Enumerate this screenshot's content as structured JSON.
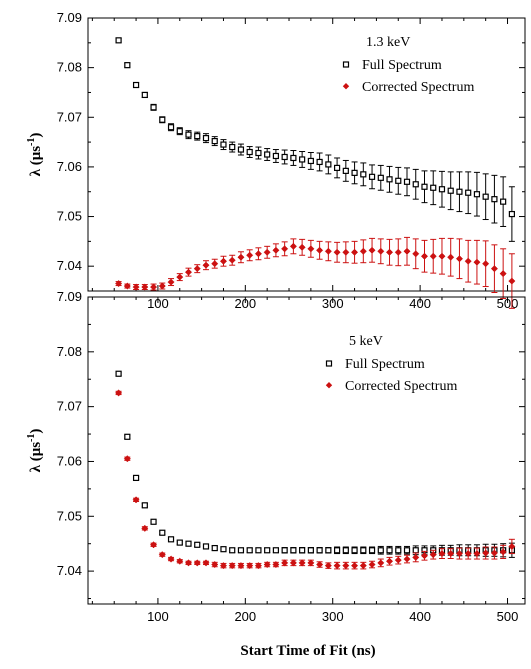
{
  "xlabel": "Start Time of Fit (ns)",
  "ylabel_main": "λ (μs",
  "ylabel_sup": "-1",
  "ylabel_close": ")",
  "colors": {
    "full": "#000000",
    "corrected": "#cc1111"
  },
  "chart_data": [
    {
      "type": "scatter",
      "energy_label": "1.3 keV",
      "legend": [
        "Full Spectrum",
        "Corrected Spectrum"
      ],
      "xlim": [
        20,
        520
      ],
      "ylim": [
        7.035,
        7.09
      ],
      "xticks": [
        100,
        200,
        300,
        400,
        500
      ],
      "yticks": [
        7.04,
        7.05,
        7.06,
        7.07,
        7.08,
        7.09
      ],
      "x": [
        55,
        65,
        75,
        85,
        95,
        105,
        115,
        125,
        135,
        145,
        155,
        165,
        175,
        185,
        195,
        205,
        215,
        225,
        235,
        245,
        255,
        265,
        275,
        285,
        295,
        305,
        315,
        325,
        335,
        345,
        355,
        365,
        375,
        385,
        395,
        405,
        415,
        425,
        435,
        445,
        455,
        465,
        475,
        485,
        495,
        505
      ],
      "series": [
        {
          "name": "Full Spectrum",
          "values": [
            7.0855,
            7.0805,
            7.0765,
            7.0745,
            7.072,
            7.0695,
            7.068,
            7.0672,
            7.0665,
            7.0662,
            7.0658,
            7.0652,
            7.0645,
            7.064,
            7.0635,
            7.063,
            7.0628,
            7.0625,
            7.0622,
            7.062,
            7.0618,
            7.0615,
            7.0612,
            7.061,
            7.0605,
            7.0598,
            7.0592,
            7.0588,
            7.0585,
            7.058,
            7.0578,
            7.0575,
            7.0572,
            7.057,
            7.0565,
            7.056,
            7.0558,
            7.0555,
            7.0552,
            7.055,
            7.0548,
            7.0545,
            7.054,
            7.0535,
            7.053,
            7.0505
          ],
          "errors": [
            0.0004,
            0.0004,
            0.0005,
            0.0005,
            0.0006,
            0.0006,
            0.0007,
            0.0007,
            0.0008,
            0.0008,
            0.0009,
            0.0009,
            0.001,
            0.001,
            0.0011,
            0.0011,
            0.0012,
            0.0012,
            0.0013,
            0.0014,
            0.0015,
            0.0016,
            0.0017,
            0.0018,
            0.0019,
            0.002,
            0.0021,
            0.0022,
            0.0023,
            0.0024,
            0.0025,
            0.0026,
            0.0027,
            0.0028,
            0.003,
            0.0032,
            0.0034,
            0.0036,
            0.0038,
            0.004,
            0.0042,
            0.0044,
            0.0046,
            0.0048,
            0.005,
            0.0055
          ]
        },
        {
          "name": "Corrected Spectrum",
          "values": [
            7.0365,
            7.036,
            7.0358,
            7.0358,
            7.0358,
            7.036,
            7.0368,
            7.0378,
            7.0388,
            7.0395,
            7.0402,
            7.0405,
            7.041,
            7.0412,
            7.0418,
            7.0422,
            7.0425,
            7.0428,
            7.0432,
            7.0435,
            7.044,
            7.0438,
            7.0435,
            7.0432,
            7.043,
            7.0428,
            7.0428,
            7.0428,
            7.043,
            7.0432,
            7.043,
            7.0428,
            7.0428,
            7.043,
            7.0425,
            7.042,
            7.042,
            7.042,
            7.0418,
            7.0415,
            7.041,
            7.0408,
            7.0405,
            7.0395,
            7.0385,
            7.037
          ],
          "errors": [
            0.0004,
            0.0004,
            0.0005,
            0.0005,
            0.0006,
            0.0006,
            0.0007,
            0.0007,
            0.0008,
            0.0008,
            0.0009,
            0.0009,
            0.001,
            0.001,
            0.0011,
            0.0011,
            0.0012,
            0.0012,
            0.0013,
            0.0014,
            0.0015,
            0.0016,
            0.0017,
            0.0018,
            0.0019,
            0.002,
            0.0021,
            0.0022,
            0.0023,
            0.0024,
            0.0025,
            0.0026,
            0.0027,
            0.0028,
            0.003,
            0.0032,
            0.0034,
            0.0036,
            0.0038,
            0.004,
            0.0042,
            0.0044,
            0.0046,
            0.0048,
            0.005,
            0.0055
          ]
        }
      ]
    },
    {
      "type": "scatter",
      "energy_label": "5 keV",
      "legend": [
        "Full Spectrum",
        "Corrected Spectrum"
      ],
      "xlim": [
        20,
        520
      ],
      "ylim": [
        7.034,
        7.09
      ],
      "xticks": [
        100,
        200,
        300,
        400,
        500
      ],
      "yticks": [
        7.04,
        7.05,
        7.06,
        7.07,
        7.08,
        7.09
      ],
      "x": [
        55,
        65,
        75,
        85,
        95,
        105,
        115,
        125,
        135,
        145,
        155,
        165,
        175,
        185,
        195,
        205,
        215,
        225,
        235,
        245,
        255,
        265,
        275,
        285,
        295,
        305,
        315,
        325,
        335,
        345,
        355,
        365,
        375,
        385,
        395,
        405,
        415,
        425,
        435,
        445,
        455,
        465,
        475,
        485,
        495,
        505
      ],
      "series": [
        {
          "name": "Full Spectrum",
          "values": [
            7.076,
            7.0645,
            7.057,
            7.052,
            7.049,
            7.047,
            7.0458,
            7.0452,
            7.045,
            7.0448,
            7.0445,
            7.0442,
            7.044,
            7.0438,
            7.0438,
            7.0438,
            7.0438,
            7.0438,
            7.0438,
            7.0438,
            7.0438,
            7.0438,
            7.0438,
            7.0438,
            7.0438,
            7.0438,
            7.0438,
            7.0438,
            7.0438,
            7.0438,
            7.0438,
            7.0438,
            7.0438,
            7.0438,
            7.0438,
            7.0438,
            7.0438,
            7.0438,
            7.0438,
            7.0438,
            7.0438,
            7.0438,
            7.0438,
            7.0438,
            7.0438,
            7.0438
          ],
          "errors": [
            0.0003,
            0.0003,
            0.0003,
            0.0003,
            0.0003,
            0.0003,
            0.0003,
            0.0003,
            0.0003,
            0.0003,
            0.0003,
            0.0004,
            0.0004,
            0.0004,
            0.0004,
            0.0004,
            0.0004,
            0.0004,
            0.0004,
            0.0005,
            0.0005,
            0.0005,
            0.0005,
            0.0005,
            0.0005,
            0.0006,
            0.0006,
            0.0006,
            0.0006,
            0.0006,
            0.0007,
            0.0007,
            0.0007,
            0.0007,
            0.0008,
            0.0008,
            0.0008,
            0.0009,
            0.0009,
            0.001,
            0.001,
            0.001,
            0.0011,
            0.0011,
            0.0012,
            0.0013
          ]
        },
        {
          "name": "Corrected Spectrum",
          "values": [
            7.0725,
            7.0605,
            7.053,
            7.0478,
            7.0448,
            7.043,
            7.0422,
            7.0418,
            7.0415,
            7.0415,
            7.0415,
            7.0412,
            7.041,
            7.041,
            7.041,
            7.041,
            7.041,
            7.0412,
            7.0412,
            7.0415,
            7.0415,
            7.0415,
            7.0415,
            7.0412,
            7.041,
            7.041,
            7.041,
            7.041,
            7.041,
            7.0412,
            7.0415,
            7.0418,
            7.042,
            7.0422,
            7.0425,
            7.0428,
            7.043,
            7.0432,
            7.0432,
            7.0432,
            7.0432,
            7.0432,
            7.0433,
            7.0433,
            7.0435,
            7.0445
          ],
          "errors": [
            0.0003,
            0.0003,
            0.0003,
            0.0003,
            0.0003,
            0.0003,
            0.0003,
            0.0003,
            0.0003,
            0.0003,
            0.0003,
            0.0004,
            0.0004,
            0.0004,
            0.0004,
            0.0004,
            0.0004,
            0.0004,
            0.0004,
            0.0005,
            0.0005,
            0.0005,
            0.0005,
            0.0005,
            0.0005,
            0.0006,
            0.0006,
            0.0006,
            0.0006,
            0.0006,
            0.0007,
            0.0007,
            0.0007,
            0.0007,
            0.0008,
            0.0008,
            0.0008,
            0.0009,
            0.0009,
            0.001,
            0.001,
            0.001,
            0.0011,
            0.0011,
            0.0012,
            0.0013
          ]
        }
      ]
    }
  ]
}
